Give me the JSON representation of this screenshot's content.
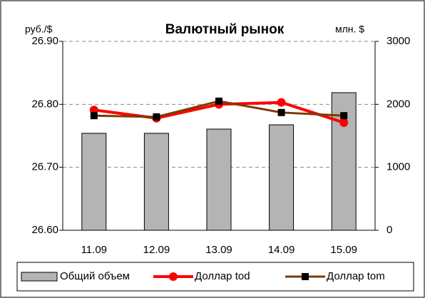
{
  "chart_data": {
    "type": "combo",
    "title": "Валютный рынок",
    "y_label": "руб./$",
    "y2_label": "млн. $",
    "categories": [
      "11.09",
      "12.09",
      "13.09",
      "14.09",
      "15.09"
    ],
    "series": [
      {
        "name": "Общий объем",
        "type": "bar",
        "axis": "y2",
        "color": "#b4b4b4",
        "values": [
          1540,
          1540,
          1607,
          1675,
          2185
        ]
      },
      {
        "name": "Доллар tod",
        "type": "line",
        "color": "#ff0000",
        "marker": "circle",
        "marker_color": "#ff0000",
        "values": [
          26.791,
          26.778,
          26.8,
          26.803,
          26.771
        ]
      },
      {
        "name": "Доллар tom",
        "type": "line",
        "color": "#7a3c00",
        "marker": "square",
        "marker_color": "#000000",
        "values": [
          26.782,
          26.78,
          26.805,
          26.787,
          26.782
        ]
      }
    ],
    "ylim": [
      26.6,
      26.9
    ],
    "yticks": [
      {
        "value": 26.6,
        "label": "26.60"
      },
      {
        "value": 26.7,
        "label": "26.70"
      },
      {
        "value": 26.8,
        "label": "26.80"
      },
      {
        "value": 26.9,
        "label": "26.90"
      }
    ],
    "y2lim": [
      0,
      3000
    ],
    "y2ticks": [
      0,
      1000,
      2000,
      3000
    ],
    "grid": true,
    "legend": "bottom"
  }
}
